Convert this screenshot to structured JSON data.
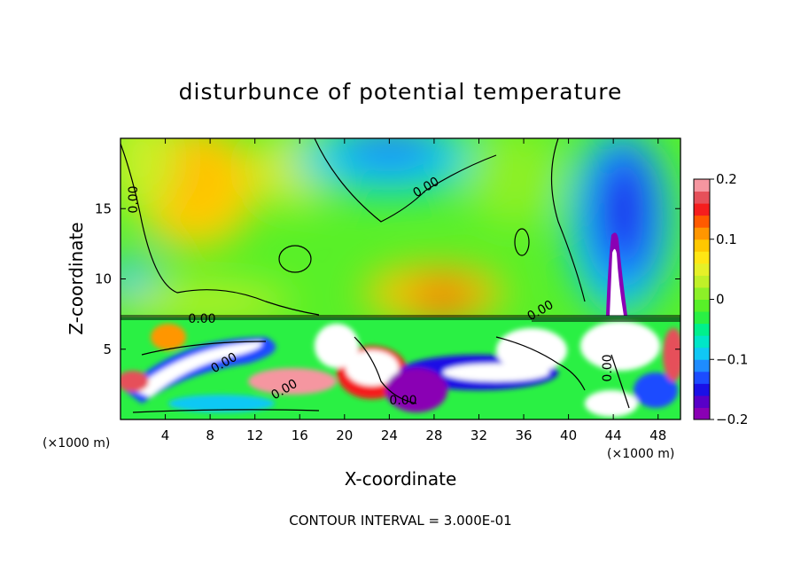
{
  "chart_data": {
    "type": "heatmap",
    "title": "disturbunce of potential temperature",
    "xlabel": "X-coordinate",
    "ylabel": "Z-coordinate",
    "x_unit": "(×1000 m)",
    "y_unit": "(×1000 m)",
    "xlim": [
      0,
      50
    ],
    "ylim": [
      0,
      20
    ],
    "x_ticks": [
      4,
      8,
      12,
      16,
      20,
      24,
      28,
      32,
      36,
      40,
      44,
      48
    ],
    "y_ticks": [
      5,
      10,
      15
    ],
    "footer": "CONTOUR INTERVAL = 3.000E-01",
    "contour_labels": [
      "0.00",
      "0.00",
      "0.00",
      "0.00",
      "0.00",
      "0.00",
      "0.00",
      "0.00"
    ],
    "colorbar": {
      "min": -0.2,
      "max": 0.2,
      "tick_values": [
        0.2,
        0.1,
        0,
        -0.1,
        -0.2
      ],
      "tick_labels": [
        "0.2",
        "0.1",
        "0",
        "-0.1",
        "-0.2"
      ],
      "colors": [
        "#8a00b4",
        "#5800c8",
        "#1a10e6",
        "#1c4cff",
        "#1e8cff",
        "#10c8f5",
        "#00e6c8",
        "#00f08c",
        "#2af044",
        "#58f028",
        "#8cf028",
        "#c0f028",
        "#e6f028",
        "#ffe614",
        "#ffc800",
        "#ff9600",
        "#ff5a00",
        "#f51e1e",
        "#e6505a",
        "#f596a0"
      ]
    }
  }
}
